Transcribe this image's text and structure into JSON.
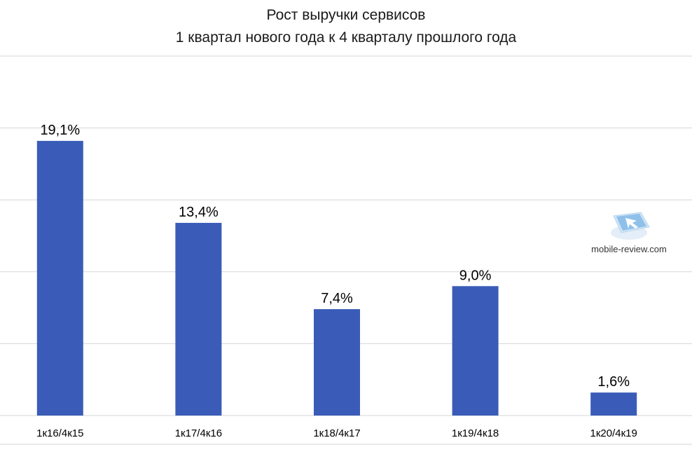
{
  "chart_data": {
    "type": "bar",
    "title": "Рост выручки сервисов",
    "subtitle": "1 квартал нового года к 4 кварталу прошлого года",
    "categories": [
      "1к16/4к15",
      "1к17/4к16",
      "1к18/4к17",
      "1к19/4к18",
      "1к20/4к19"
    ],
    "values": [
      19.1,
      13.4,
      7.4,
      9.0,
      1.6
    ],
    "value_labels": [
      "19,1%",
      "13,4%",
      "7,4%",
      "9,0%",
      "1,6%"
    ],
    "xlabel": "",
    "ylabel": "",
    "ylim": [
      0,
      25
    ],
    "grid": true,
    "legend": "none",
    "bar_color": "#3a5cb8"
  },
  "watermark": {
    "text": "mobile-review.com"
  }
}
